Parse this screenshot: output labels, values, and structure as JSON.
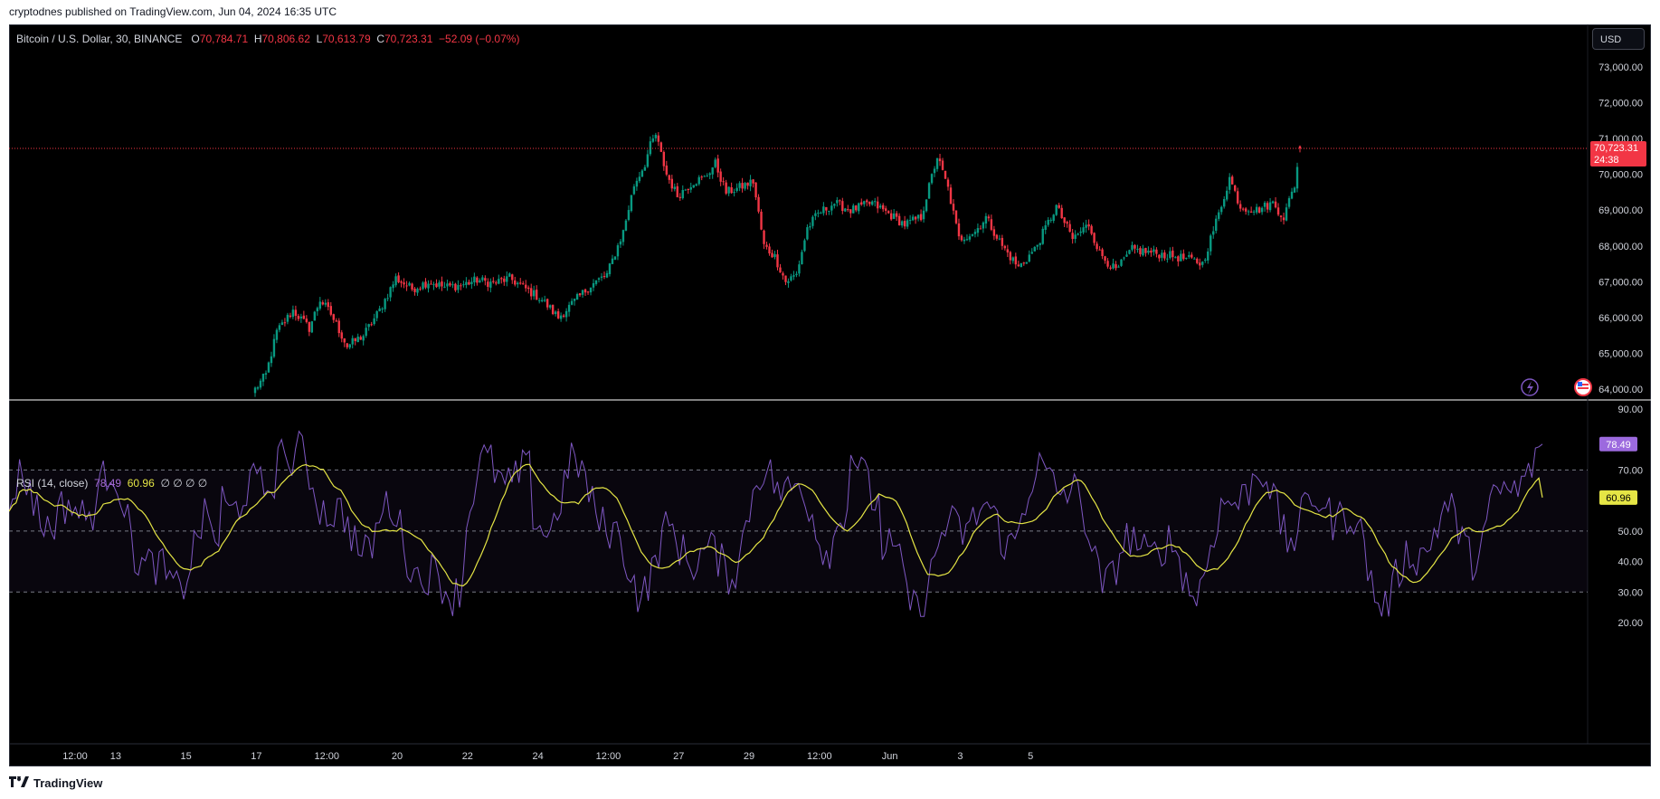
{
  "header": {
    "published_by": "cryptodnes published on TradingView.com, Jun 04, 2024 16:35 UTC"
  },
  "legend": {
    "symbol": "Bitcoin / U.S. Dollar, 30, BINANCE",
    "o_label": "O",
    "o_value": "70,784.71",
    "h_label": "H",
    "h_value": "70,806.62",
    "l_label": "L",
    "l_value": "70,613.79",
    "c_label": "C",
    "c_value": "70,723.31",
    "change": "−52.09 (−0.07%)"
  },
  "currency_button": "USD",
  "price_badge": {
    "price": "70,723.31",
    "countdown": "24:38",
    "color": "#f23645"
  },
  "rsi_legend": {
    "name": "RSI (14, close)",
    "rsi_value": "78.49",
    "ma_value": "60.96",
    "empty_values": "∅ ∅ ∅ ∅"
  },
  "rsi_badges": {
    "rsi": "78.49",
    "ma": "60.96"
  },
  "footer": {
    "brand": "TradingView"
  },
  "colors": {
    "up": "#089981",
    "down": "#f23645",
    "rsi_line": "#7e57c2",
    "rsi_ma": "#e5e545",
    "background": "#000000"
  },
  "chart_data": [
    {
      "type": "line",
      "title": "Bitcoin / U.S. Dollar, 30, BINANCE",
      "y_axis_ticks": [
        "73,000.00",
        "72,000.00",
        "71,000.00",
        "70,000.00",
        "69,000.00",
        "68,000.00",
        "67,000.00",
        "66,000.00",
        "65,000.00",
        "64,000.00"
      ],
      "ylim": [
        63950,
        73550
      ],
      "x_axis_ticks": [
        "12:00",
        "13",
        "15",
        "17",
        "12:00",
        "20",
        "22",
        "24",
        "12:00",
        "27",
        "29",
        "12:00",
        "Jun",
        "3",
        "5"
      ],
      "x_tick_index": [
        6,
        21,
        47,
        73,
        99,
        125,
        151,
        177,
        203,
        229,
        255,
        281,
        307,
        333,
        359
      ],
      "close_anchors": [
        [
          0,
          64000
        ],
        [
          4,
          64400
        ],
        [
          8,
          65600
        ],
        [
          14,
          66200
        ],
        [
          20,
          65700
        ],
        [
          24,
          66500
        ],
        [
          28,
          66100
        ],
        [
          34,
          65200
        ],
        [
          40,
          65500
        ],
        [
          46,
          66200
        ],
        [
          52,
          67100
        ],
        [
          58,
          66800
        ],
        [
          64,
          67000
        ],
        [
          70,
          66850
        ],
        [
          76,
          66900
        ],
        [
          82,
          67050
        ],
        [
          88,
          66950
        ],
        [
          94,
          67100
        ],
        [
          100,
          66800
        ],
        [
          106,
          66500
        ],
        [
          112,
          66000
        ],
        [
          118,
          66450
        ],
        [
          124,
          66900
        ],
        [
          130,
          67200
        ],
        [
          136,
          68400
        ],
        [
          140,
          69700
        ],
        [
          144,
          70300
        ],
        [
          146,
          70800
        ],
        [
          148,
          71100
        ],
        [
          152,
          70000
        ],
        [
          156,
          69400
        ],
        [
          162,
          69800
        ],
        [
          166,
          69900
        ],
        [
          170,
          70300
        ],
        [
          174,
          69500
        ],
        [
          178,
          69600
        ],
        [
          184,
          69800
        ],
        [
          188,
          68000
        ],
        [
          192,
          67700
        ],
        [
          196,
          67000
        ],
        [
          200,
          67200
        ],
        [
          204,
          68500
        ],
        [
          208,
          68900
        ],
        [
          214,
          69200
        ],
        [
          220,
          69000
        ],
        [
          228,
          69200
        ],
        [
          234,
          68900
        ],
        [
          240,
          68600
        ],
        [
          246,
          68800
        ],
        [
          252,
          70500
        ],
        [
          256,
          69600
        ],
        [
          260,
          68200
        ],
        [
          266,
          68400
        ],
        [
          270,
          68800
        ],
        [
          276,
          68000
        ],
        [
          282,
          67400
        ],
        [
          288,
          67900
        ],
        [
          296,
          69100
        ],
        [
          302,
          68200
        ],
        [
          308,
          68600
        ],
        [
          312,
          67800
        ],
        [
          318,
          67300
        ],
        [
          324,
          67900
        ],
        [
          332,
          67800
        ],
        [
          340,
          67700
        ],
        [
          346,
          67600
        ],
        [
          350,
          67500
        ],
        [
          356,
          68900
        ],
        [
          360,
          69900
        ],
        [
          364,
          69100
        ],
        [
          370,
          69000
        ],
        [
          376,
          69200
        ],
        [
          380,
          68800
        ],
        [
          384,
          69700
        ],
        [
          386,
          70723
        ]
      ],
      "last": {
        "open": 70784.71,
        "high": 70806.62,
        "low": 70613.79,
        "close": 70723.31
      }
    },
    {
      "type": "line",
      "title": "RSI (14, close)",
      "y_axis_ticks": [
        "90.00",
        "70.00",
        "60.96",
        "50.00",
        "40.00",
        "30.00",
        "20.00"
      ],
      "ylim": [
        16,
        94
      ],
      "levels": [
        70,
        50,
        30
      ],
      "series": [
        {
          "name": "RSI",
          "last": 78.49
        },
        {
          "name": "MA",
          "last": 60.96
        }
      ]
    }
  ]
}
